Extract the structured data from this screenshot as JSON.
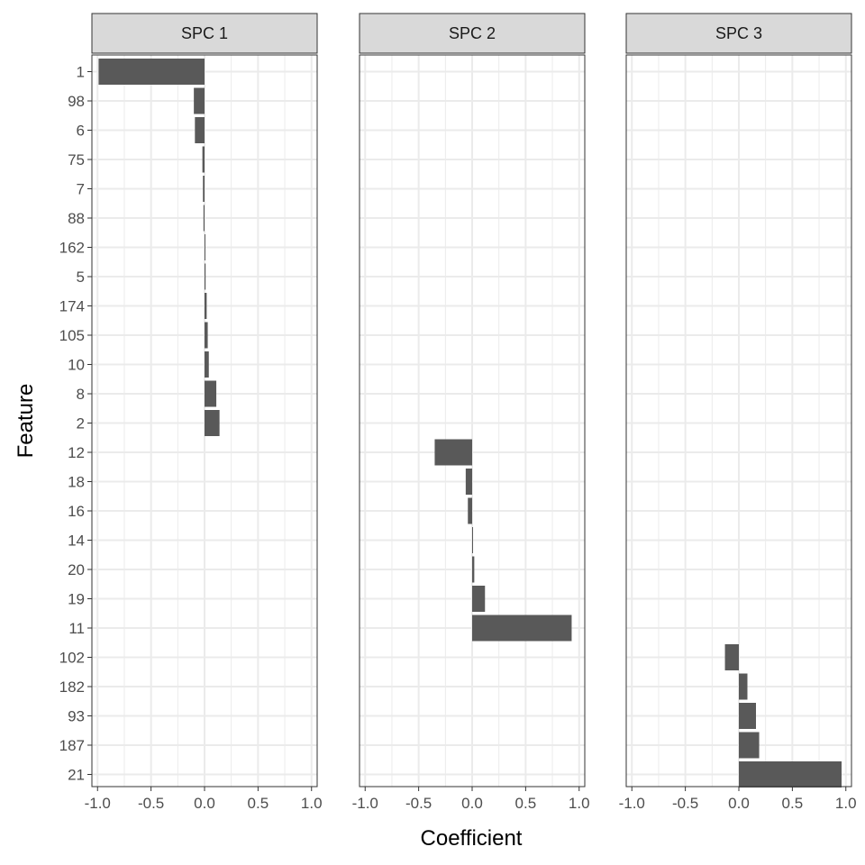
{
  "chart_data": {
    "type": "bar",
    "orientation": "horizontal",
    "facets": [
      "SPC 1",
      "SPC 2",
      "SPC 3"
    ],
    "xlabel": "Coefficient",
    "ylabel": "Feature",
    "xlim": [
      -1.0,
      1.0
    ],
    "xticks": [
      "-1.0",
      "-0.5",
      "0.0",
      "0.5",
      "1.0"
    ],
    "xtick_values": [
      -1.0,
      -0.5,
      0.0,
      0.5,
      1.0
    ],
    "categories": [
      "1",
      "98",
      "6",
      "75",
      "7",
      "88",
      "162",
      "5",
      "174",
      "105",
      "10",
      "8",
      "2",
      "12",
      "18",
      "16",
      "14",
      "20",
      "19",
      "11",
      "102",
      "182",
      "93",
      "187",
      "21"
    ],
    "bar_color": "#595959",
    "grid": true,
    "panels": [
      {
        "facet": "SPC 1",
        "bars": [
          {
            "feature": "1",
            "value": -0.99
          },
          {
            "feature": "98",
            "value": -0.1
          },
          {
            "feature": "6",
            "value": -0.09
          },
          {
            "feature": "75",
            "value": -0.02
          },
          {
            "feature": "7",
            "value": -0.015
          },
          {
            "feature": "88",
            "value": -0.01
          },
          {
            "feature": "162",
            "value": 0.005
          },
          {
            "feature": "5",
            "value": 0.01
          },
          {
            "feature": "174",
            "value": 0.02
          },
          {
            "feature": "105",
            "value": 0.03
          },
          {
            "feature": "10",
            "value": 0.04
          },
          {
            "feature": "8",
            "value": 0.11
          },
          {
            "feature": "2",
            "value": 0.14
          }
        ]
      },
      {
        "facet": "SPC 2",
        "bars": [
          {
            "feature": "12",
            "value": -0.35
          },
          {
            "feature": "18",
            "value": -0.06
          },
          {
            "feature": "16",
            "value": -0.04
          },
          {
            "feature": "14",
            "value": 0.005
          },
          {
            "feature": "20",
            "value": 0.02
          },
          {
            "feature": "19",
            "value": 0.12
          },
          {
            "feature": "11",
            "value": 0.93
          }
        ]
      },
      {
        "facet": "SPC 3",
        "bars": [
          {
            "feature": "102",
            "value": -0.13
          },
          {
            "feature": "182",
            "value": 0.08
          },
          {
            "feature": "93",
            "value": 0.16
          },
          {
            "feature": "187",
            "value": 0.19
          },
          {
            "feature": "21",
            "value": 0.96
          }
        ]
      }
    ]
  }
}
